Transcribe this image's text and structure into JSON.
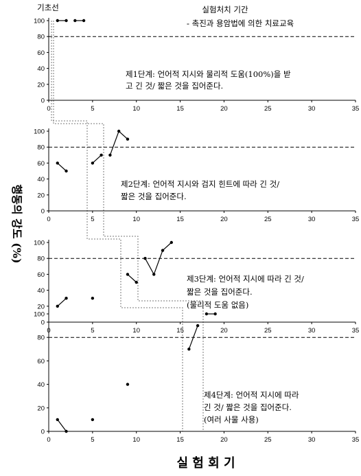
{
  "header": {
    "baseline_label": "기초선",
    "treatment_title": "실험처치 기간",
    "treatment_subtitle": "- 촉진과 용암법에 의한 치료교육"
  },
  "y_axis_label": "행동의 강도 (%)",
  "x_axis_label": "실 험 회 기",
  "colors": {
    "line": "#000000",
    "criterion": "#000000",
    "phase_line": "#777777"
  },
  "chart_data": [
    {
      "type": "line",
      "panel": 1,
      "annotation": [
        "제1단계: 언어적 지시와 물리적 도움(100%)을 받",
        "고 긴 것/ 짧은 것을 집어준다."
      ],
      "xlim": [
        0,
        35
      ],
      "ylim": [
        0,
        100
      ],
      "xticks": [
        0,
        5,
        10,
        15,
        20,
        25,
        30,
        35
      ],
      "yticks": [
        0,
        20,
        40,
        60,
        80,
        100
      ],
      "criterion": 80,
      "segments": [
        [
          [
            1,
            100
          ],
          [
            2,
            100
          ]
        ],
        [
          [
            3,
            100
          ],
          [
            4,
            100
          ]
        ]
      ]
    },
    {
      "type": "line",
      "panel": 2,
      "annotation": [
        "제2단계: 언어적 지시와 검지 힌트에 따라 긴 것/",
        "짧은 것을 집어준다."
      ],
      "xlim": [
        0,
        35
      ],
      "ylim": [
        0,
        100
      ],
      "xticks": [
        0,
        5,
        10,
        15,
        20,
        25,
        30,
        35
      ],
      "yticks": [
        0,
        20,
        40,
        60,
        80,
        100
      ],
      "criterion": 80,
      "segments": [
        [
          [
            1,
            60
          ],
          [
            2,
            50
          ]
        ],
        [
          [
            5,
            60
          ],
          [
            6,
            70
          ]
        ],
        [
          [
            7,
            70
          ],
          [
            8,
            100
          ],
          [
            9,
            90
          ]
        ]
      ]
    },
    {
      "type": "line",
      "panel": 3,
      "annotation": [
        "제3단계: 언어적 지시에 따라 긴 것/",
        "짧은 것을 집어준다.",
        "(물리적 도움 없음)"
      ],
      "xlim": [
        0,
        35
      ],
      "ylim": [
        0,
        100
      ],
      "xticks": [
        0,
        5,
        10,
        15,
        20,
        25,
        30,
        35
      ],
      "yticks": [
        0,
        20,
        40,
        60,
        80,
        100
      ],
      "criterion": 80,
      "segments": [
        [
          [
            1,
            20
          ],
          [
            2,
            30
          ]
        ],
        [
          [
            5,
            30
          ]
        ],
        [
          [
            9,
            60
          ],
          [
            10,
            50
          ]
        ],
        [
          [
            11,
            80
          ],
          [
            12,
            60
          ],
          [
            13,
            90
          ],
          [
            14,
            100
          ]
        ]
      ]
    },
    {
      "type": "line",
      "panel": 4,
      "annotation": [
        "제4단계: 언어적 지시에 따라",
        "긴 것/ 짧은 것을 집어준다.",
        "(여러 사물 사용)"
      ],
      "xlim": [
        0,
        35
      ],
      "ylim": [
        0,
        100
      ],
      "xticks": [
        0,
        5,
        10,
        15,
        20,
        25,
        30,
        35
      ],
      "yticks": [
        0,
        20,
        40,
        60,
        80,
        100
      ],
      "criterion": 80,
      "segments": [
        [
          [
            1,
            10
          ],
          [
            2,
            0
          ]
        ],
        [
          [
            5,
            10
          ]
        ],
        [
          [
            9,
            40
          ]
        ],
        [
          [
            16,
            70
          ],
          [
            17,
            90
          ]
        ],
        [
          [
            18,
            100
          ],
          [
            19,
            100
          ]
        ]
      ]
    }
  ]
}
